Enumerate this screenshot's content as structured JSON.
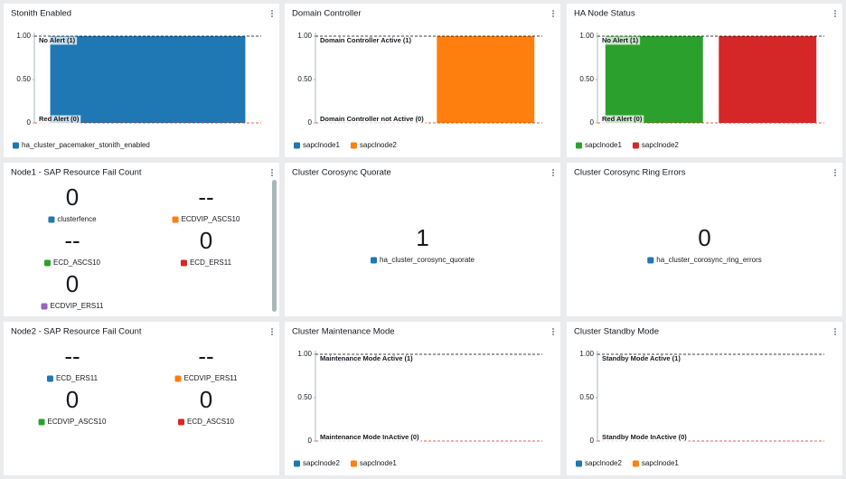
{
  "widgets": [
    {
      "type": "bar",
      "title": "Stonith Enabled",
      "series": [
        {
          "name": "ha_cluster_pacemaker_stonith_enabled",
          "color": "#1f77b4",
          "values": [
            1
          ]
        }
      ],
      "ylim": [
        0,
        1
      ],
      "yticks": [
        0,
        {
          "value": 0.5,
          "label": "0.50"
        },
        {
          "value": 1,
          "label": "1.00"
        }
      ],
      "annotations": [
        {
          "label": "No Alert (1)",
          "value": 1,
          "color": "#000000"
        },
        {
          "label": "Red Alert (0)",
          "value": 0,
          "color": "#d13212"
        }
      ]
    },
    {
      "type": "bar",
      "title": "Domain Controller",
      "series": [
        {
          "name": "sapclnode1",
          "color": "#1f77b4",
          "values": [
            0
          ]
        },
        {
          "name": "sapclnode2",
          "color": "#ff7f0e",
          "values": [
            1
          ]
        }
      ],
      "ylim": [
        0,
        1
      ],
      "yticks": [
        0,
        {
          "value": 0.5,
          "label": "0.50"
        },
        {
          "value": 1,
          "label": "1.00"
        }
      ],
      "annotations": [
        {
          "label": "Domain Controller Active (1)",
          "value": 1,
          "color": "#000000"
        },
        {
          "label": "Domain Controller not Active (0)",
          "value": 0,
          "color": "#d13212"
        }
      ]
    },
    {
      "type": "bar",
      "title": "HA Node Status",
      "series": [
        {
          "name": "sapclnode1",
          "color": "#2ca02c",
          "values": [
            1
          ]
        },
        {
          "name": "sapclnode2",
          "color": "#d62728",
          "values": [
            1
          ]
        }
      ],
      "ylim": [
        0,
        1
      ],
      "yticks": [
        0,
        {
          "value": 0.5,
          "label": "0.50"
        },
        {
          "value": 1,
          "label": "1.00"
        }
      ],
      "annotations": [
        {
          "label": "No Alert (1)",
          "value": 1,
          "color": "#000000"
        },
        {
          "label": "Red Alert (0)",
          "value": 0,
          "color": "#d13212"
        }
      ]
    },
    {
      "type": "number",
      "title": "Node1 - SAP Resource Fail Count",
      "items": [
        {
          "name": "clusterfence",
          "color": "#1f77b4",
          "value": 0
        },
        {
          "name": "ECDVIP_ASCS10",
          "color": "#ff7f0e",
          "value": "--"
        },
        {
          "name": "ECD_ASCS10",
          "color": "#2ca02c",
          "value": "--"
        },
        {
          "name": "ECD_ERS11",
          "color": "#d62728",
          "value": 0
        },
        {
          "name": "ECDVIP_ERS11",
          "color": "#9467bd",
          "value": 0
        }
      ]
    },
    {
      "type": "number",
      "title": "Cluster Corosync Quorate",
      "items": [
        {
          "name": "ha_cluster_corosync_quorate",
          "color": "#1f77b4",
          "value": 1
        }
      ]
    },
    {
      "type": "number",
      "title": "Cluster Corosync Ring Errors",
      "items": [
        {
          "name": "ha_cluster_corosync_ring_errors",
          "color": "#1f77b4",
          "value": 0
        }
      ]
    },
    {
      "type": "number",
      "title": "Node2 - SAP Resource Fail Count",
      "items": [
        {
          "name": "ECD_ERS11",
          "color": "#1f77b4",
          "value": "--"
        },
        {
          "name": "ECDVIP_ERS11",
          "color": "#ff7f0e",
          "value": "--"
        },
        {
          "name": "ECDVIP_ASCS10",
          "color": "#2ca02c",
          "value": 0
        },
        {
          "name": "ECD_ASCS10",
          "color": "#d62728",
          "value": 0
        }
      ]
    },
    {
      "type": "line",
      "title": "Cluster Maintenance Mode",
      "series": [
        {
          "name": "sapclnode2",
          "color": "#1f77b4"
        },
        {
          "name": "sapclnode1",
          "color": "#ff7f0e"
        }
      ],
      "ylim": [
        0,
        1
      ],
      "yticks": [
        0,
        {
          "value": 0.5,
          "label": "0.50"
        },
        {
          "value": 1,
          "label": "1.00"
        }
      ],
      "annotations": [
        {
          "label": "Maintenance Mode Active (1)",
          "value": 1,
          "color": "#000000"
        },
        {
          "label": "Maintenance Mode InActive (0)",
          "value": 0,
          "color": "#d13212"
        }
      ]
    },
    {
      "type": "line",
      "title": "Cluster Standby Mode",
      "series": [
        {
          "name": "sapclnode2",
          "color": "#1f77b4"
        },
        {
          "name": "sapclnode1",
          "color": "#ff7f0e"
        }
      ],
      "ylim": [
        0,
        1
      ],
      "yticks": [
        0,
        {
          "value": 0.5,
          "label": "0.50"
        },
        {
          "value": 1,
          "label": "1.00"
        }
      ],
      "annotations": [
        {
          "label": "Standby Mode Active (1)",
          "value": 1,
          "color": "#000000"
        },
        {
          "label": "Standby Mode InActive (0)",
          "value": 0,
          "color": "#d13212"
        }
      ]
    }
  ]
}
